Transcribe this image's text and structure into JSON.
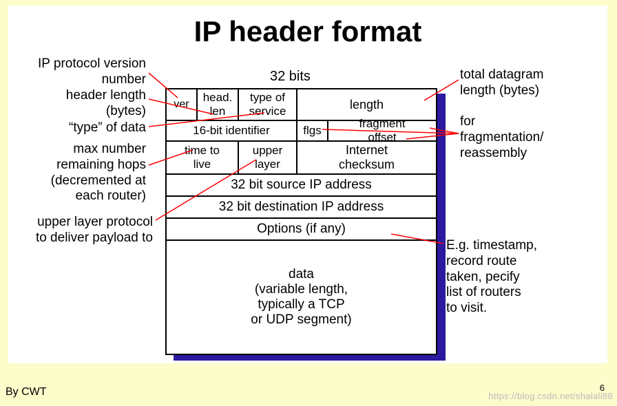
{
  "title": "IP header format",
  "bits_label": "32 bits",
  "table": {
    "r1": {
      "ver": "ver",
      "hlen": "head.\nlen",
      "tos": "type of\nservice",
      "len": "length"
    },
    "r2": {
      "id": "16-bit identifier",
      "flgs": "flgs",
      "frag": "fragment\noffset"
    },
    "r3": {
      "ttl": "time to\nlive",
      "ul": "upper\nlayer",
      "chk": "Internet\nchecksum"
    },
    "r4": "32 bit source IP address",
    "r5": "32 bit destination IP address",
    "r6": "Options (if any)",
    "r7": "data\n(variable length,\ntypically a TCP\nor UDP segment)"
  },
  "ann": {
    "ver": "IP protocol version\nnumber",
    "hlen": "header length\n(bytes)",
    "tos": "“type” of data",
    "ttl": "max number\nremaining hops\n(decremented at\neach router)",
    "upper": "upper layer protocol\nto deliver payload to",
    "len": "total datagram\nlength (bytes)",
    "frag": "for\nfragmentation/\nreassembly",
    "opt": "E.g. timestamp,\nrecord route\ntaken, pecify\nlist of routers\nto visit."
  },
  "footer_by": "By CWT",
  "footer_pg": "6",
  "watermark": "https://blog.csdn.net/shalali88",
  "colors": {
    "page_bg": "#fdfccb",
    "inner_bg": "#ffffff",
    "shadow": "#2b1aa0",
    "line_red": "#ff0000",
    "line_black": "#000000"
  }
}
